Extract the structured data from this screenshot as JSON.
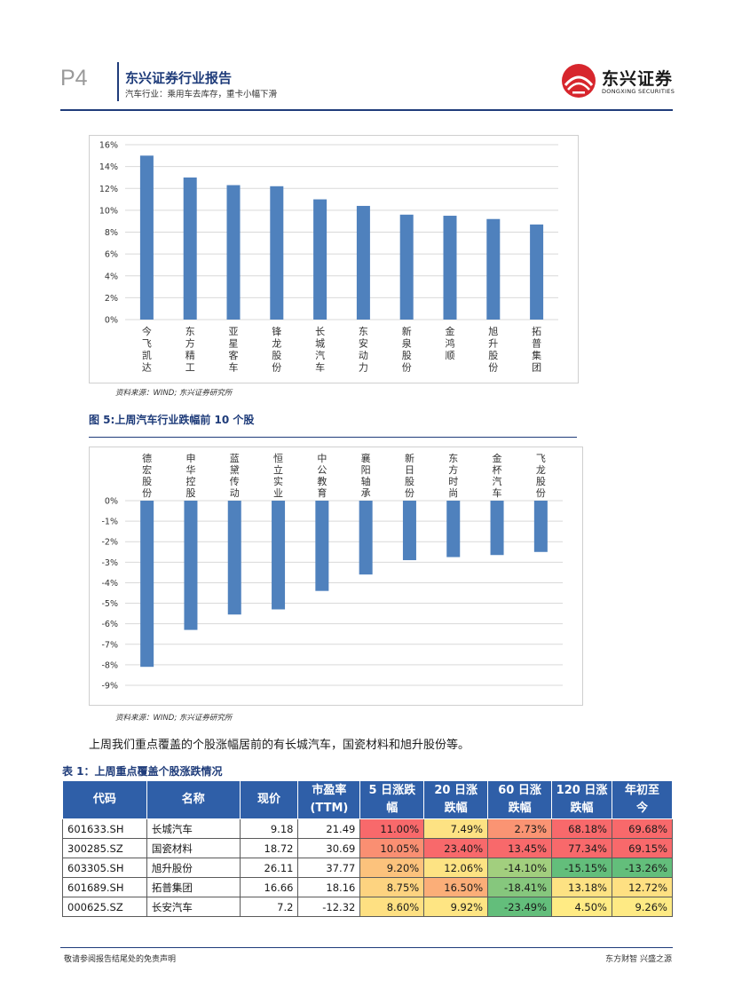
{
  "header": {
    "page": "P4",
    "report_title": "东兴证券行业报告",
    "report_subtitle": "汽车行业：乘用车去库存，重卡小幅下滑",
    "logo_cn": "东兴证券",
    "logo_en": "DONGXING SECURITIES",
    "accent": "#1f3c7a",
    "logo_red": "#d7262d"
  },
  "source_note": "资料来源：WIND; 东兴证券研究所",
  "charts_meta": {
    "bar_color": "#4f81bd"
  },
  "chart_data": [
    {
      "type": "bar",
      "title": "",
      "categories": [
        "今飞凯达",
        "东方精工",
        "亚星客车",
        "锋龙股份",
        "长城汽车",
        "东安动力",
        "新泉股份",
        "金鸿顺",
        "旭升股份",
        "拓普集团"
      ],
      "values": [
        15.0,
        13.0,
        12.3,
        12.2,
        11.0,
        10.4,
        9.6,
        9.5,
        9.2,
        8.7
      ],
      "ylim": [
        0,
        16
      ],
      "yticks": [
        "0%",
        "2%",
        "4%",
        "6%",
        "8%",
        "10%",
        "12%",
        "14%",
        "16%"
      ],
      "unit": "%",
      "grid": true
    },
    {
      "type": "bar",
      "title": "图 5:上周汽车行业跌幅前 10 个股",
      "categories": [
        "德宏股份",
        "申华控股",
        "蓝黛传动",
        "恒立实业",
        "中公教育",
        "襄阳轴承",
        "新日股份",
        "东方时尚",
        "金杯汽车",
        "飞龙股份"
      ],
      "values": [
        -8.1,
        -6.3,
        -5.55,
        -5.3,
        -4.4,
        -3.6,
        -2.9,
        -2.75,
        -2.65,
        -2.5
      ],
      "ylim": [
        -9,
        0
      ],
      "yticks": [
        "0%",
        "-1%",
        "-2%",
        "-3%",
        "-4%",
        "-5%",
        "-6%",
        "-7%",
        "-8%",
        "-9%"
      ],
      "unit": "%",
      "grid": true
    }
  ],
  "paragraph": "上周我们重点覆盖的个股涨幅居前的有长城汽车，国瓷材料和旭升股份等。",
  "table": {
    "title": "表 1：上周重点覆盖个股涨跌情况",
    "headers": [
      "代码",
      "名称",
      "现价",
      "市盈率(TTM)",
      "5 日涨跌幅",
      "20 日涨跌幅",
      "60 日涨跌幅",
      "120 日涨跌幅",
      "年初至今"
    ],
    "header_lines": [
      [
        "代码"
      ],
      [
        "名称"
      ],
      [
        "现价"
      ],
      [
        "市盈率",
        "(TTM)"
      ],
      [
        "5 日涨跌",
        "幅"
      ],
      [
        "20 日涨",
        "跌幅"
      ],
      [
        "60 日涨",
        "跌幅"
      ],
      [
        "120 日涨",
        "跌幅"
      ],
      [
        "年初至",
        "今"
      ]
    ],
    "rows": [
      {
        "code": "601633.SH",
        "name": "长城汽车",
        "price": "9.18",
        "pe": "21.49",
        "d5": "11.00%",
        "d20": "7.49%",
        "d60": "2.73%",
        "d120": "68.18%",
        "ytd": "69.68%",
        "colors": {
          "d5": "#f8696b",
          "d20": "#fde283",
          "d60": "#fa9473",
          "d120": "#f8696b",
          "ytd": "#f8696b"
        }
      },
      {
        "code": "300285.SZ",
        "name": "国瓷材料",
        "price": "18.72",
        "pe": "30.69",
        "d5": "10.05%",
        "d20": "23.40%",
        "d60": "13.45%",
        "d120": "77.34%",
        "ytd": "69.15%",
        "colors": {
          "d5": "#fa8f72",
          "d20": "#f8696b",
          "d60": "#f8696b",
          "d120": "#f8696b",
          "ytd": "#f8696b"
        }
      },
      {
        "code": "603305.SH",
        "name": "旭升股份",
        "price": "26.11",
        "pe": "37.77",
        "d5": "9.20%",
        "d20": "12.06%",
        "d60": "-14.10%",
        "d120": "-15.15%",
        "ytd": "-13.26%",
        "colors": {
          "d5": "#fcc27c",
          "d20": "#fde383",
          "d60": "#a2cf7e",
          "d120": "#63be7b",
          "ytd": "#63be7b"
        }
      },
      {
        "code": "601689.SH",
        "name": "拓普集团",
        "price": "16.66",
        "pe": "18.16",
        "d5": "8.75%",
        "d20": "16.50%",
        "d60": "-18.41%",
        "d120": "13.18%",
        "ytd": "12.72%",
        "colors": {
          "d5": "#fdd380",
          "d20": "#fbae78",
          "d60": "#86c77d",
          "d120": "#fde283",
          "ytd": "#fee082"
        }
      },
      {
        "code": "000625.SZ",
        "name": "长安汽车",
        "price": "7.2",
        "pe": "-12.32",
        "d5": "8.60%",
        "d20": "9.92%",
        "d60": "-23.49%",
        "d120": "4.50%",
        "ytd": "9.26%",
        "colors": {
          "d5": "#fee082",
          "d20": "#fee583",
          "d60": "#63be7b",
          "d120": "#ffeb84",
          "ytd": "#feea84"
        }
      }
    ]
  },
  "footer": {
    "left": "敬请参阅报告结尾处的免责声明",
    "right": "东方财智 兴盛之源"
  }
}
